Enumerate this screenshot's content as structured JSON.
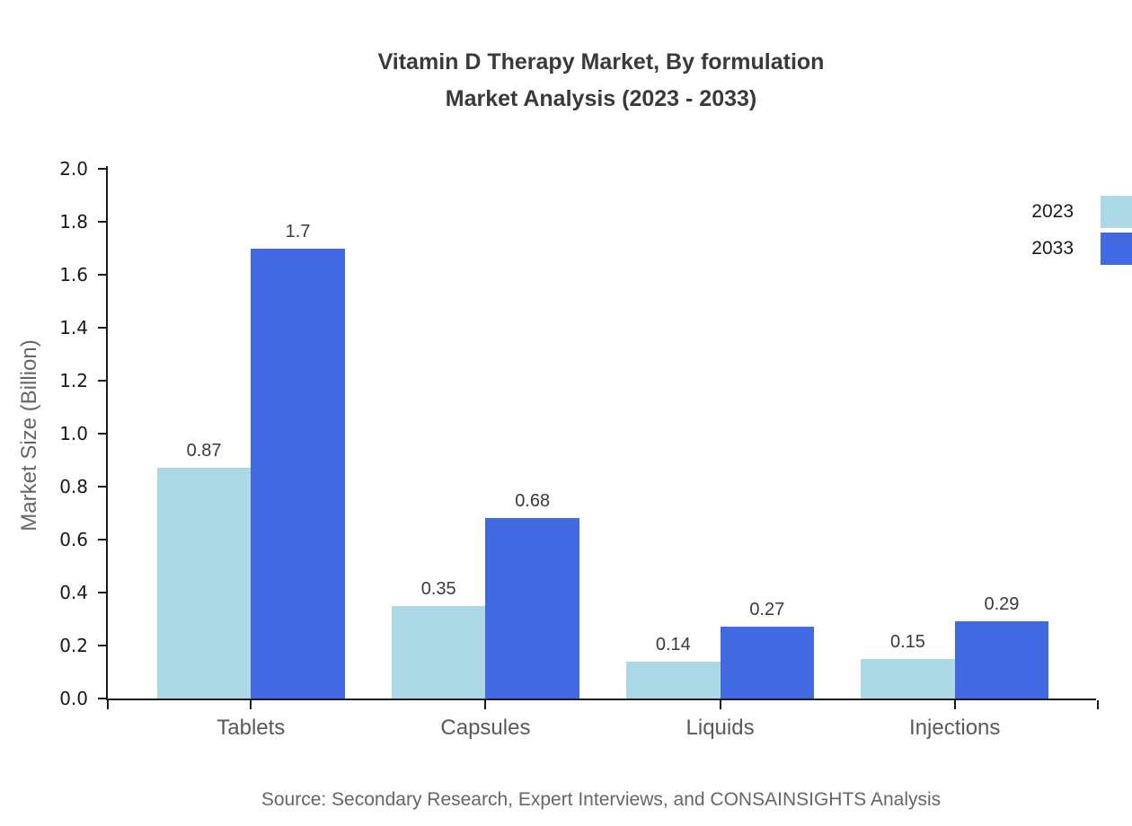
{
  "title": {
    "line1": "Vitamin D Therapy Market, By formulation",
    "line2": "Market Analysis (2023 - 2033)"
  },
  "chart_data": {
    "type": "bar",
    "categories": [
      "Tablets",
      "Capsules",
      "Liquids",
      "Injections"
    ],
    "series": [
      {
        "name": "2023",
        "color": "#ADD8E6",
        "values": [
          0.87,
          0.35,
          0.14,
          0.15
        ]
      },
      {
        "name": "2033",
        "color": "#4169E1",
        "values": [
          1.7,
          0.68,
          0.27,
          0.29
        ]
      }
    ],
    "value_labels": {
      "2023": [
        "0.87",
        "0.35",
        "0.14",
        "0.15"
      ],
      "2033": [
        "1.7",
        "0.68",
        "0.27",
        "0.29"
      ]
    },
    "title": "Vitamin D Therapy Market, By formulation Market Analysis (2023 - 2033)",
    "xlabel": "",
    "ylabel": "Market Size (Billion)",
    "ylim": [
      0.0,
      2.0
    ],
    "ytick_step": 0.2,
    "grid": false,
    "legend_position": "top-right"
  },
  "source": "Source: Secondary Research, Expert Interviews, and CONSAINSIGHTS Analysis",
  "colors": {
    "series_2023": "#ADD8E6",
    "series_2033": "#4169E1",
    "axis": "#1a1a1a",
    "title_text": "#3a3a3a",
    "muted_text": "#666666",
    "category_text": "#595959"
  }
}
